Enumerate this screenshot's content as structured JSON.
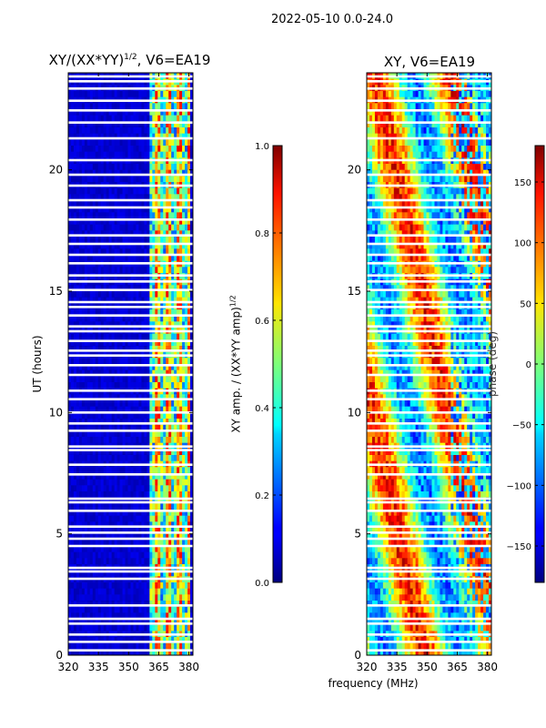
{
  "suptitle": "2022-05-10 0.0-24.0",
  "chart_data": [
    {
      "type": "heatmap",
      "title": "XY/(XX*YY)$^{1/2}$, V6=EA19",
      "title_text": "XY/(XX*YY)",
      "title_exp": "1/2",
      "title_tail": ", V6=EA19",
      "xlabel": "",
      "ylabel": "UT (hours)",
      "xlim": [
        320,
        382
      ],
      "ylim": [
        0,
        24
      ],
      "xticks": [
        320,
        335,
        350,
        365,
        380
      ],
      "yticks": [
        0,
        5,
        10,
        15,
        20
      ],
      "colormap": "jet",
      "colorbar": {
        "label_text": "XY amp. / (XX*YY amp)",
        "label_exp": "1/2",
        "range": [
          0.0,
          1.0
        ],
        "ticks": [
          "0.0",
          "0.2",
          "0.4",
          "0.6",
          "0.8",
          "1.0"
        ]
      },
      "bright_band_MHz": [
        361,
        380
      ],
      "background_level": 0.05
    },
    {
      "type": "heatmap",
      "title": "XY, V6=EA19",
      "xlabel": "frequency (MHz)",
      "ylabel": "",
      "xlim": [
        320,
        382
      ],
      "ylim": [
        0,
        24
      ],
      "xticks": [
        320,
        335,
        350,
        365,
        380
      ],
      "yticks": [
        0,
        5,
        10,
        15,
        20
      ],
      "colormap": "jet",
      "colorbar": {
        "label": "phase (deg)",
        "range": [
          -180,
          180
        ],
        "ticks": [
          "−150",
          "−100",
          "−50",
          "0",
          "50",
          "100",
          "150"
        ]
      }
    }
  ],
  "flagged_rows_hours": [
    0.2,
    0.55,
    0.85,
    1.3,
    1.5,
    2.05,
    3.15,
    3.45,
    3.6,
    4.5,
    4.8,
    5.05,
    5.3,
    5.95,
    6.3,
    6.45,
    7.45,
    7.85,
    8.45,
    8.6,
    9.25,
    9.55,
    10.0,
    10.55,
    10.9,
    11.55,
    11.95,
    12.35,
    12.55,
    12.95,
    13.35,
    13.55,
    14.0,
    14.35,
    14.55,
    15.05,
    15.4,
    15.65,
    16.15,
    16.5,
    16.95,
    17.3,
    17.95,
    18.45,
    18.75,
    19.35,
    19.8,
    20.4,
    21.3,
    21.95,
    22.45,
    22.85,
    23.35,
    23.65,
    23.85
  ]
}
